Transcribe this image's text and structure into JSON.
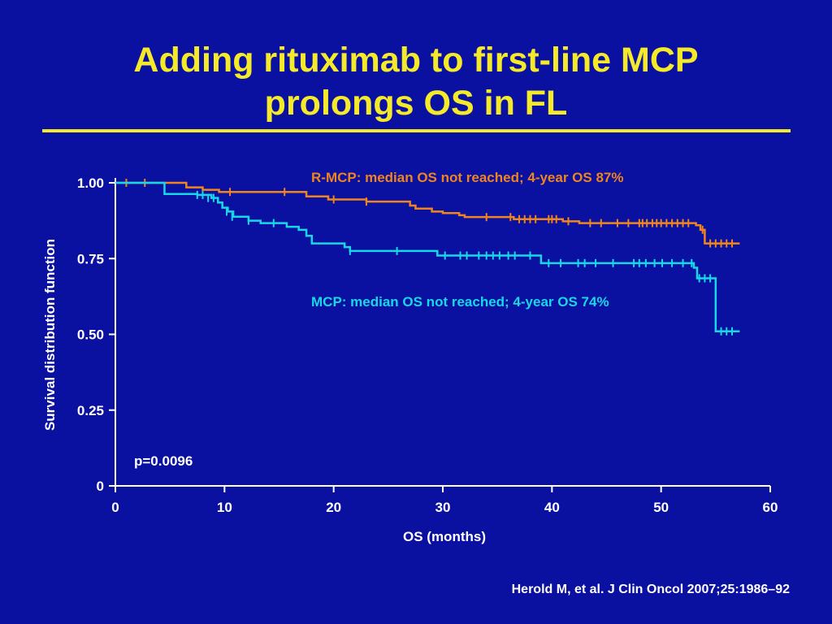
{
  "slide": {
    "title_line1": "Adding rituximab to first-line MCP",
    "title_line2": "prolongs OS in FL",
    "citation": "Herold M, et al. J Clin Oncol 2007;25:1986–92"
  },
  "colors": {
    "background": "#0a10a0",
    "title": "#f5ea2a",
    "axes": "#ffffff",
    "r_mcp": "#f0841e",
    "mcp": "#18d8e8"
  },
  "chart_data": {
    "type": "line",
    "subtype": "kaplan-meier step curve",
    "xlabel": "OS (months)",
    "ylabel": "Survival distribution function",
    "xlim": [
      0,
      60
    ],
    "ylim": [
      0,
      1
    ],
    "x_ticks": [
      "0",
      "10",
      "20",
      "30",
      "40",
      "50",
      "60"
    ],
    "y_ticks": [
      "0",
      "0.25",
      "0.50",
      "0.75",
      "1.00"
    ],
    "annotation": "p=0.0096",
    "grid": false,
    "series": [
      {
        "name": "R-MCP",
        "label": "R-MCP: median OS not reached; 4-year OS 87%",
        "color": "#f0841e",
        "steps": [
          [
            0,
            1.0
          ],
          [
            6.5,
            0.985
          ],
          [
            8,
            0.977
          ],
          [
            9.5,
            0.97
          ],
          [
            17.5,
            0.955
          ],
          [
            19.5,
            0.945
          ],
          [
            23,
            0.938
          ],
          [
            27,
            0.925
          ],
          [
            27.5,
            0.915
          ],
          [
            29,
            0.905
          ],
          [
            30,
            0.9
          ],
          [
            31.5,
            0.893
          ],
          [
            32,
            0.887
          ],
          [
            36.5,
            0.88
          ],
          [
            41,
            0.873
          ],
          [
            42.5,
            0.867
          ],
          [
            53.2,
            0.86
          ],
          [
            53.6,
            0.845
          ],
          [
            54,
            0.8
          ],
          [
            57.2,
            0.8
          ]
        ],
        "censored": [
          [
            1,
            1.0
          ],
          [
            2.7,
            1.0
          ],
          [
            10.5,
            0.97
          ],
          [
            15.5,
            0.97
          ],
          [
            20,
            0.945
          ],
          [
            23,
            0.938
          ],
          [
            34,
            0.887
          ],
          [
            36.2,
            0.887
          ],
          [
            37,
            0.88
          ],
          [
            37.5,
            0.88
          ],
          [
            38,
            0.88
          ],
          [
            38.5,
            0.88
          ],
          [
            39.7,
            0.88
          ],
          [
            40,
            0.88
          ],
          [
            40.4,
            0.88
          ],
          [
            41.5,
            0.873
          ],
          [
            43.5,
            0.867
          ],
          [
            44.5,
            0.867
          ],
          [
            46,
            0.867
          ],
          [
            47,
            0.867
          ],
          [
            48,
            0.867
          ],
          [
            48.3,
            0.867
          ],
          [
            48.7,
            0.867
          ],
          [
            49.2,
            0.867
          ],
          [
            49.6,
            0.867
          ],
          [
            50,
            0.867
          ],
          [
            50.5,
            0.867
          ],
          [
            51,
            0.867
          ],
          [
            51.5,
            0.867
          ],
          [
            52,
            0.867
          ],
          [
            52.5,
            0.867
          ],
          [
            53.8,
            0.845
          ],
          [
            54.5,
            0.8
          ],
          [
            55,
            0.8
          ],
          [
            55.5,
            0.8
          ],
          [
            56,
            0.8
          ],
          [
            56.5,
            0.8
          ]
        ]
      },
      {
        "name": "MCP",
        "label": "MCP: median OS not reached; 4-year OS 74%",
        "color": "#18d8e8",
        "steps": [
          [
            0,
            1.0
          ],
          [
            4.5,
            0.963
          ],
          [
            7.5,
            0.96
          ],
          [
            8.8,
            0.95
          ],
          [
            9.4,
            0.935
          ],
          [
            9.8,
            0.918
          ],
          [
            10.3,
            0.905
          ],
          [
            10.8,
            0.888
          ],
          [
            12.2,
            0.875
          ],
          [
            13.3,
            0.867
          ],
          [
            15.7,
            0.855
          ],
          [
            16.8,
            0.845
          ],
          [
            17.5,
            0.825
          ],
          [
            18,
            0.8
          ],
          [
            21,
            0.788
          ],
          [
            21.5,
            0.775
          ],
          [
            29.5,
            0.76
          ],
          [
            38.5,
            0.76
          ],
          [
            39,
            0.735
          ],
          [
            53,
            0.72
          ],
          [
            53.3,
            0.685
          ],
          [
            55,
            0.51
          ],
          [
            57.2,
            0.51
          ]
        ],
        "censored": [
          [
            7.5,
            0.96
          ],
          [
            8,
            0.96
          ],
          [
            8.5,
            0.95
          ],
          [
            9,
            0.95
          ],
          [
            10.2,
            0.905
          ],
          [
            10.7,
            0.888
          ],
          [
            12.2,
            0.875
          ],
          [
            14.5,
            0.867
          ],
          [
            21.5,
            0.775
          ],
          [
            25.8,
            0.775
          ],
          [
            30.2,
            0.76
          ],
          [
            31.6,
            0.76
          ],
          [
            32.2,
            0.76
          ],
          [
            33.3,
            0.76
          ],
          [
            34,
            0.76
          ],
          [
            34.6,
            0.76
          ],
          [
            35.2,
            0.76
          ],
          [
            36,
            0.76
          ],
          [
            36.6,
            0.76
          ],
          [
            38,
            0.76
          ],
          [
            39.7,
            0.735
          ],
          [
            40.8,
            0.735
          ],
          [
            42.4,
            0.735
          ],
          [
            43,
            0.735
          ],
          [
            44,
            0.735
          ],
          [
            45.6,
            0.735
          ],
          [
            47.5,
            0.735
          ],
          [
            48,
            0.735
          ],
          [
            48.6,
            0.735
          ],
          [
            49.4,
            0.735
          ],
          [
            50.1,
            0.735
          ],
          [
            51,
            0.735
          ],
          [
            52,
            0.735
          ],
          [
            52.8,
            0.735
          ],
          [
            53.5,
            0.685
          ],
          [
            54,
            0.685
          ],
          [
            54.5,
            0.685
          ],
          [
            55.5,
            0.51
          ],
          [
            56,
            0.51
          ],
          [
            56.5,
            0.51
          ]
        ]
      }
    ]
  }
}
